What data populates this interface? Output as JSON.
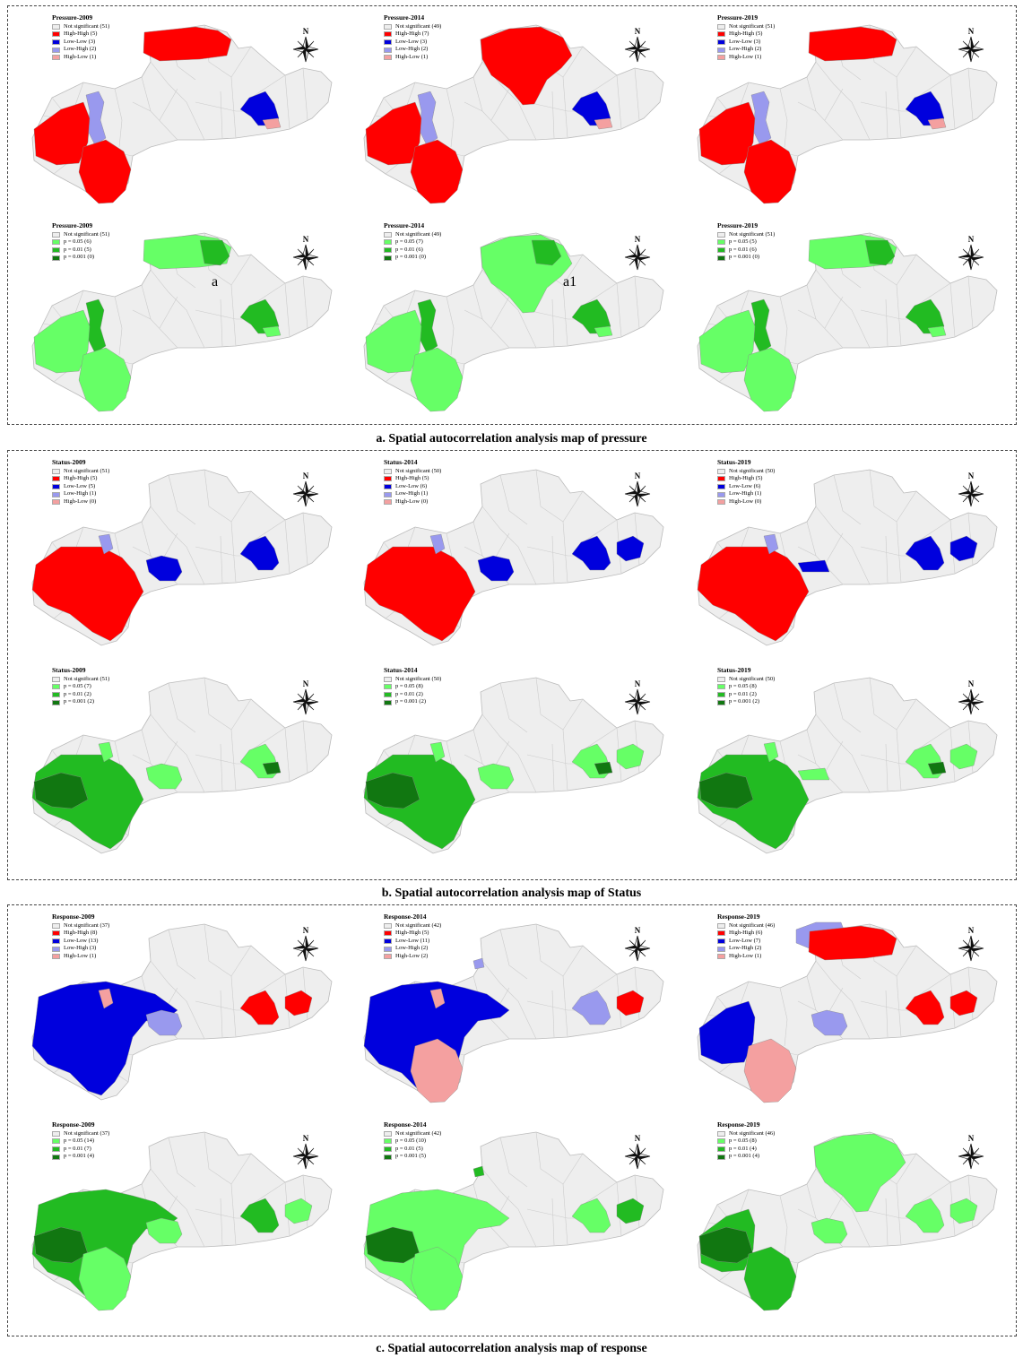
{
  "sections": [
    {
      "caption": "a. Spatial autocorrelation analysis map of pressure",
      "panels": [
        {
          "title": "Pressure-2009",
          "legend": [
            {
              "label": "Not significant (51)",
              "color": "#eeeeee"
            },
            {
              "label": "High-High (5)",
              "color": "#ff0000"
            },
            {
              "label": "Low-Low (3)",
              "color": "#0000dd"
            },
            {
              "label": "Low-High (2)",
              "color": "#9999ee"
            },
            {
              "label": "High-Low (1)",
              "color": "#f4a0a0"
            }
          ],
          "regions": {
            "north": "#ff0000",
            "east": "#0000dd",
            "eastspot": "#f4a0a0",
            "westcore": "#9999ee",
            "west": "#ff0000",
            "sw": "#ff0000"
          }
        },
        {
          "title": "Pressure-2014",
          "legend": [
            {
              "label": "Not significant (49)",
              "color": "#eeeeee"
            },
            {
              "label": "High-High (7)",
              "color": "#ff0000"
            },
            {
              "label": "Low-Low (3)",
              "color": "#0000dd"
            },
            {
              "label": "Low-High (2)",
              "color": "#9999ee"
            },
            {
              "label": "High-Low (1)",
              "color": "#f4a0a0"
            }
          ],
          "regions": {
            "northbig": "#ff0000",
            "east": "#0000dd",
            "eastspot": "#f4a0a0",
            "westcore": "#9999ee",
            "west": "#ff0000",
            "sw": "#ff0000"
          }
        },
        {
          "title": "Pressure-2019",
          "legend": [
            {
              "label": "Not significant (51)",
              "color": "#eeeeee"
            },
            {
              "label": "High-High (5)",
              "color": "#ff0000"
            },
            {
              "label": "Low-Low (3)",
              "color": "#0000dd"
            },
            {
              "label": "Low-High (2)",
              "color": "#9999ee"
            },
            {
              "label": "High-Low (1)",
              "color": "#f4a0a0"
            }
          ],
          "regions": {
            "north": "#ff0000",
            "east": "#0000dd",
            "eastspot": "#f4a0a0",
            "westcore": "#9999ee",
            "west": "#ff0000",
            "sw": "#ff0000"
          }
        },
        {
          "title": "Pressure-2009",
          "legend": [
            {
              "label": "Not significant (51)",
              "color": "#eeeeee"
            },
            {
              "label": "p = 0.05 (6)",
              "color": "#66ff66"
            },
            {
              "label": "p = 0.01 (5)",
              "color": "#22bb22"
            },
            {
              "label": "p = 0.001 (0)",
              "color": "#117711"
            }
          ],
          "marker": "a",
          "regions": {
            "north": "#66ff66",
            "northdark": "#22bb22",
            "east": "#22bb22",
            "eastspot": "#66ff66",
            "westcore": "#22bb22",
            "west": "#66ff66",
            "sw": "#66ff66"
          }
        },
        {
          "title": "Pressure-2014",
          "legend": [
            {
              "label": "Not significant (49)",
              "color": "#eeeeee"
            },
            {
              "label": "p = 0.05 (7)",
              "color": "#66ff66"
            },
            {
              "label": "p = 0.01 (6)",
              "color": "#22bb22"
            },
            {
              "label": "p = 0.001 (0)",
              "color": "#117711"
            }
          ],
          "marker": "a1",
          "regions": {
            "northbig": "#66ff66",
            "northdark": "#22bb22",
            "east": "#22bb22",
            "eastspot": "#66ff66",
            "westcore": "#22bb22",
            "west": "#66ff66",
            "sw": "#66ff66"
          }
        },
        {
          "title": "Pressure-2019",
          "legend": [
            {
              "label": "Not significant (51)",
              "color": "#eeeeee"
            },
            {
              "label": "p = 0.05 (5)",
              "color": "#66ff66"
            },
            {
              "label": "p = 0.01 (6)",
              "color": "#22bb22"
            },
            {
              "label": "p = 0.001 (0)",
              "color": "#117711"
            }
          ],
          "regions": {
            "north": "#66ff66",
            "northdark": "#22bb22",
            "east": "#22bb22",
            "eastspot": "#66ff66",
            "westcore": "#22bb22",
            "west": "#66ff66",
            "sw": "#66ff66"
          }
        }
      ]
    },
    {
      "caption": "b. Spatial autocorrelation analysis map of Status",
      "panels": [
        {
          "title": "Status-2009",
          "legend": [
            {
              "label": "Not significant (51)",
              "color": "#eeeeee"
            },
            {
              "label": "High-High (5)",
              "color": "#ff0000"
            },
            {
              "label": "Low-Low (5)",
              "color": "#0000dd"
            },
            {
              "label": "Low-High (1)",
              "color": "#9999ee"
            },
            {
              "label": "High-Low (0)",
              "color": "#f4a0a0"
            }
          ],
          "regions": {
            "westbig": "#ff0000",
            "westcorenorth": "#9999ee",
            "central": "#0000dd",
            "east": "#0000dd"
          }
        },
        {
          "title": "Status-2014",
          "legend": [
            {
              "label": "Not significant (50)",
              "color": "#eeeeee"
            },
            {
              "label": "High-High (5)",
              "color": "#ff0000"
            },
            {
              "label": "Low-Low (6)",
              "color": "#0000dd"
            },
            {
              "label": "Low-High (1)",
              "color": "#9999ee"
            },
            {
              "label": "High-Low (0)",
              "color": "#f4a0a0"
            }
          ],
          "regions": {
            "westbig": "#ff0000",
            "westcorenorth": "#9999ee",
            "central": "#0000dd",
            "east": "#0000dd",
            "farEast": "#0000dd"
          }
        },
        {
          "title": "Status-2019",
          "legend": [
            {
              "label": "Not significant (50)",
              "color": "#eeeeee"
            },
            {
              "label": "High-High (5)",
              "color": "#ff0000"
            },
            {
              "label": "Low-Low (6)",
              "color": "#0000dd"
            },
            {
              "label": "Low-High (1)",
              "color": "#9999ee"
            },
            {
              "label": "High-Low (0)",
              "color": "#f4a0a0"
            }
          ],
          "regions": {
            "westbig": "#ff0000",
            "westcorenorth": "#9999ee",
            "centralsmall": "#0000dd",
            "east": "#0000dd",
            "farEast": "#0000dd"
          }
        },
        {
          "title": "Status-2009",
          "legend": [
            {
              "label": "Not significant (51)",
              "color": "#eeeeee"
            },
            {
              "label": "p = 0.05 (7)",
              "color": "#66ff66"
            },
            {
              "label": "p = 0.01 (2)",
              "color": "#22bb22"
            },
            {
              "label": "p = 0.001 (2)",
              "color": "#117711"
            }
          ],
          "regions": {
            "westbig": "#22bb22",
            "westdark": "#117711",
            "westcorenorth": "#66ff66",
            "central": "#66ff66",
            "east": "#66ff66",
            "eastdark": "#117711"
          }
        },
        {
          "title": "Status-2014",
          "legend": [
            {
              "label": "Not significant (50)",
              "color": "#eeeeee"
            },
            {
              "label": "p = 0.05 (8)",
              "color": "#66ff66"
            },
            {
              "label": "p = 0.01 (2)",
              "color": "#22bb22"
            },
            {
              "label": "p = 0.001 (2)",
              "color": "#117711"
            }
          ],
          "regions": {
            "westbig": "#22bb22",
            "westdark": "#117711",
            "westcorenorth": "#66ff66",
            "central": "#66ff66",
            "east": "#66ff66",
            "eastdark": "#117711",
            "farEast": "#66ff66"
          }
        },
        {
          "title": "Status-2019",
          "legend": [
            {
              "label": "Not significant (50)",
              "color": "#eeeeee"
            },
            {
              "label": "p = 0.05 (8)",
              "color": "#66ff66"
            },
            {
              "label": "p = 0.01 (2)",
              "color": "#22bb22"
            },
            {
              "label": "p = 0.001 (2)",
              "color": "#117711"
            }
          ],
          "regions": {
            "westbig": "#22bb22",
            "westdark": "#117711",
            "westcorenorth": "#66ff66",
            "centralsmall": "#66ff66",
            "east": "#66ff66",
            "eastdark": "#117711",
            "farEast": "#66ff66"
          }
        }
      ]
    },
    {
      "caption": "c. Spatial autocorrelation analysis map of response",
      "panels": [
        {
          "title": "Response-2009",
          "legend": [
            {
              "label": "Not significant (37)",
              "color": "#eeeeee"
            },
            {
              "label": "High-High (8)",
              "color": "#ff0000"
            },
            {
              "label": "Low-Low (13)",
              "color": "#0000dd"
            },
            {
              "label": "Low-High (3)",
              "color": "#9999ee"
            },
            {
              "label": "High-Low (1)",
              "color": "#f4a0a0"
            }
          ],
          "regions": {
            "westhuge": "#0000dd",
            "westcorenorth": "#f4a0a0",
            "central": "#9999ee",
            "east": "#ff0000",
            "farEast": "#ff0000"
          }
        },
        {
          "title": "Response-2014",
          "legend": [
            {
              "label": "Not significant (42)",
              "color": "#eeeeee"
            },
            {
              "label": "High-High (5)",
              "color": "#ff0000"
            },
            {
              "label": "Low-Low (11)",
              "color": "#0000dd"
            },
            {
              "label": "Low-High (2)",
              "color": "#9999ee"
            },
            {
              "label": "High-Low (2)",
              "color": "#f4a0a0"
            }
          ],
          "regions": {
            "westhuge": "#0000dd",
            "westcorenorth": "#f4a0a0",
            "sw": "#f4a0a0",
            "east": "#9999ee",
            "farEast": "#ff0000",
            "nspot": "#9999ee"
          }
        },
        {
          "title": "Response-2019",
          "legend": [
            {
              "label": "Not significant (46)",
              "color": "#eeeeee"
            },
            {
              "label": "High-High (6)",
              "color": "#ff0000"
            },
            {
              "label": "Low-Low (7)",
              "color": "#0000dd"
            },
            {
              "label": "Low-High (2)",
              "color": "#9999ee"
            },
            {
              "label": "High-Low (1)",
              "color": "#f4a0a0"
            }
          ],
          "regions": {
            "northtop": "#9999ee",
            "north": "#ff0000",
            "west": "#0000dd",
            "sw": "#f4a0a0",
            "central": "#9999ee",
            "east": "#ff0000",
            "farEast": "#ff0000"
          }
        },
        {
          "title": "Response-2009",
          "legend": [
            {
              "label": "Not significant (37)",
              "color": "#eeeeee"
            },
            {
              "label": "p = 0.05 (14)",
              "color": "#66ff66"
            },
            {
              "label": "p = 0.01 (7)",
              "color": "#22bb22"
            },
            {
              "label": "p = 0.001 (4)",
              "color": "#117711"
            }
          ],
          "regions": {
            "westhuge": "#22bb22",
            "westdark": "#117711",
            "sw": "#66ff66",
            "central": "#66ff66",
            "east": "#22bb22",
            "farEast": "#66ff66"
          }
        },
        {
          "title": "Response-2014",
          "legend": [
            {
              "label": "Not significant (42)",
              "color": "#eeeeee"
            },
            {
              "label": "p = 0.05 (10)",
              "color": "#66ff66"
            },
            {
              "label": "p = 0.01 (5)",
              "color": "#22bb22"
            },
            {
              "label": "p = 0.001 (5)",
              "color": "#117711"
            }
          ],
          "regions": {
            "westhuge": "#66ff66",
            "westdark": "#117711",
            "sw": "#66ff66",
            "east": "#66ff66",
            "farEast": "#22bb22",
            "nspot": "#22bb22"
          }
        },
        {
          "title": "Response-2019",
          "legend": [
            {
              "label": "Not significant (46)",
              "color": "#eeeeee"
            },
            {
              "label": "p = 0.05 (8)",
              "color": "#66ff66"
            },
            {
              "label": "p = 0.01 (4)",
              "color": "#22bb22"
            },
            {
              "label": "p = 0.001 (4)",
              "color": "#117711"
            }
          ],
          "regions": {
            "northbig": "#66ff66",
            "west": "#22bb22",
            "westdark": "#117711",
            "sw": "#22bb22",
            "central": "#66ff66",
            "east": "#66ff66",
            "farEast": "#66ff66"
          }
        }
      ]
    }
  ],
  "compass_label": "N",
  "colors": {
    "base": "#eeeeee",
    "border": "#bbbbbb"
  }
}
